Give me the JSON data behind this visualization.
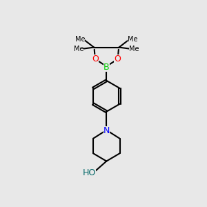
{
  "bg_color": "#e8e8e8",
  "bond_color": "#000000",
  "bond_lw": 1.5,
  "atom_B_color": "#00cc00",
  "atom_O_color": "#ff0000",
  "atom_N_color": "#0000ff",
  "atom_OH_color": "#006666",
  "font_size_atom": 8,
  "font_size_methyl": 7,
  "xlim": [
    0,
    10
  ],
  "ylim": [
    0,
    14
  ],
  "figsize": [
    3.0,
    3.0
  ],
  "dpi": 100
}
